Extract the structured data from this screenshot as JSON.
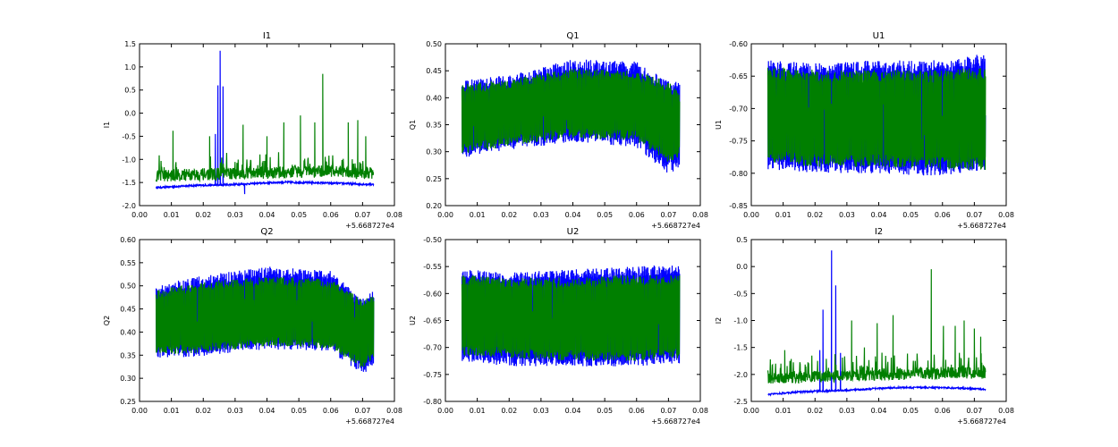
{
  "chart_data": [
    {
      "type": "line",
      "title": "I1",
      "ylabel": "I1",
      "xlabel": "",
      "x_offset_label": "+5.668727e4",
      "xlim": [
        0.0,
        0.08
      ],
      "ylim": [
        -2.0,
        1.5
      ],
      "xticks": [
        "0.00",
        "0.01",
        "0.02",
        "0.03",
        "0.04",
        "0.05",
        "0.06",
        "0.07",
        "0.08"
      ],
      "yticks": [
        "-2.0",
        "-1.5",
        "-1.0",
        "-0.5",
        "0.0",
        "0.5",
        "1.0",
        "1.5"
      ],
      "x_range": [
        0.0052,
        0.0735
      ],
      "series": [
        {
          "color": "#0000ff",
          "style": "baseline",
          "base": [
            [
              0.005,
              -1.62
            ],
            [
              0.015,
              -1.58
            ],
            [
              0.03,
              -1.55
            ],
            [
              0.045,
              -1.5
            ],
            [
              0.06,
              -1.52
            ],
            [
              0.0735,
              -1.55
            ]
          ],
          "noise": 0.04,
          "spikes": [
            [
              0.0238,
              -0.45
            ],
            [
              0.0246,
              0.6
            ],
            [
              0.0253,
              1.35
            ],
            [
              0.0262,
              0.58
            ],
            [
              0.033,
              -1.75
            ]
          ]
        },
        {
          "color": "#007f00",
          "style": "baseline",
          "base": [
            [
              0.005,
              -1.45
            ],
            [
              0.03,
              -1.4
            ],
            [
              0.06,
              -1.35
            ],
            [
              0.0735,
              -1.4
            ]
          ],
          "noise": 0.12,
          "spikes": [
            [
              0.0105,
              -0.38
            ],
            [
              0.022,
              -0.5
            ],
            [
              0.0325,
              -0.25
            ],
            [
              0.04,
              -0.5
            ],
            [
              0.0453,
              -0.2
            ],
            [
              0.0505,
              -0.05
            ],
            [
              0.055,
              -0.2
            ],
            [
              0.0575,
              0.85
            ],
            [
              0.0655,
              -0.2
            ],
            [
              0.0685,
              -0.15
            ],
            [
              0.071,
              -0.5
            ]
          ]
        }
      ]
    },
    {
      "type": "line",
      "title": "Q1",
      "ylabel": "Q1",
      "xlabel": "",
      "x_offset_label": "+5.668727e4",
      "xlim": [
        0.0,
        0.08
      ],
      "ylim": [
        0.2,
        0.5
      ],
      "xticks": [
        "0.00",
        "0.01",
        "0.02",
        "0.03",
        "0.04",
        "0.05",
        "0.06",
        "0.07",
        "0.08"
      ],
      "yticks": [
        "0.20",
        "0.25",
        "0.30",
        "0.35",
        "0.40",
        "0.45",
        "0.50"
      ],
      "x_range": [
        0.0052,
        0.0735
      ],
      "series": [
        {
          "color": "#0000ff",
          "style": "band",
          "top": [
            [
              0.005,
              0.42
            ],
            [
              0.02,
              0.43
            ],
            [
              0.04,
              0.46
            ],
            [
              0.06,
              0.455
            ],
            [
              0.07,
              0.42
            ],
            [
              0.0735,
              0.42
            ]
          ],
          "bottom": [
            [
              0.005,
              0.3
            ],
            [
              0.02,
              0.315
            ],
            [
              0.04,
              0.33
            ],
            [
              0.06,
              0.32
            ],
            [
              0.07,
              0.27
            ],
            [
              0.0735,
              0.28
            ]
          ],
          "noise": 0.012
        },
        {
          "color": "#007f00",
          "style": "band",
          "top": [
            [
              0.005,
              0.415
            ],
            [
              0.02,
              0.425
            ],
            [
              0.04,
              0.445
            ],
            [
              0.06,
              0.44
            ],
            [
              0.07,
              0.42
            ],
            [
              0.0735,
              0.4
            ]
          ],
          "bottom": [
            [
              0.005,
              0.305
            ],
            [
              0.02,
              0.32
            ],
            [
              0.04,
              0.335
            ],
            [
              0.06,
              0.33
            ],
            [
              0.07,
              0.29
            ],
            [
              0.0735,
              0.3
            ]
          ],
          "noise": 0.01
        }
      ]
    },
    {
      "type": "line",
      "title": "U1",
      "ylabel": "U1",
      "xlabel": "",
      "x_offset_label": "+5.668727e4",
      "xlim": [
        0.0,
        0.08
      ],
      "ylim": [
        -0.85,
        -0.6
      ],
      "xticks": [
        "0.00",
        "0.01",
        "0.02",
        "0.03",
        "0.04",
        "0.05",
        "0.06",
        "0.07",
        "0.08"
      ],
      "yticks": [
        "-0.85",
        "-0.80",
        "-0.75",
        "-0.70",
        "-0.65",
        "-0.60"
      ],
      "x_range": [
        0.0052,
        0.0735
      ],
      "series": [
        {
          "color": "#0000ff",
          "style": "band",
          "top": [
            [
              0.005,
              -0.635
            ],
            [
              0.02,
              -0.64
            ],
            [
              0.04,
              -0.635
            ],
            [
              0.06,
              -0.635
            ],
            [
              0.0735,
              -0.625
            ]
          ],
          "bottom": [
            [
              0.005,
              -0.785
            ],
            [
              0.02,
              -0.79
            ],
            [
              0.04,
              -0.79
            ],
            [
              0.06,
              -0.795
            ],
            [
              0.0735,
              -0.785
            ]
          ],
          "noise": 0.01
        },
        {
          "color": "#007f00",
          "style": "band",
          "top": [
            [
              0.005,
              -0.645
            ],
            [
              0.02,
              -0.65
            ],
            [
              0.04,
              -0.65
            ],
            [
              0.06,
              -0.65
            ],
            [
              0.0735,
              -0.645
            ]
          ],
          "bottom": [
            [
              0.005,
              -0.775
            ],
            [
              0.02,
              -0.78
            ],
            [
              0.04,
              -0.78
            ],
            [
              0.06,
              -0.785
            ],
            [
              0.0735,
              -0.785
            ]
          ],
          "noise": 0.01
        }
      ]
    },
    {
      "type": "line",
      "title": "Q2",
      "ylabel": "Q2",
      "xlabel": "",
      "x_offset_label": "+5.668727e4",
      "xlim": [
        0.0,
        0.08
      ],
      "ylim": [
        0.25,
        0.6
      ],
      "xticks": [
        "0.00",
        "0.01",
        "0.02",
        "0.03",
        "0.04",
        "0.05",
        "0.06",
        "0.07",
        "0.08"
      ],
      "yticks": [
        "0.25",
        "0.30",
        "0.35",
        "0.40",
        "0.45",
        "0.50",
        "0.55",
        "0.60"
      ],
      "x_range": [
        0.0052,
        0.0735
      ],
      "series": [
        {
          "color": "#0000ff",
          "style": "band",
          "top": [
            [
              0.005,
              0.49
            ],
            [
              0.02,
              0.51
            ],
            [
              0.04,
              0.53
            ],
            [
              0.06,
              0.52
            ],
            [
              0.07,
              0.46
            ],
            [
              0.0735,
              0.48
            ]
          ],
          "bottom": [
            [
              0.005,
              0.355
            ],
            [
              0.02,
              0.36
            ],
            [
              0.04,
              0.375
            ],
            [
              0.06,
              0.37
            ],
            [
              0.07,
              0.32
            ],
            [
              0.0735,
              0.34
            ]
          ],
          "noise": 0.012
        },
        {
          "color": "#007f00",
          "style": "band",
          "top": [
            [
              0.005,
              0.48
            ],
            [
              0.02,
              0.5
            ],
            [
              0.04,
              0.51
            ],
            [
              0.06,
              0.505
            ],
            [
              0.07,
              0.46
            ],
            [
              0.0735,
              0.47
            ]
          ],
          "bottom": [
            [
              0.005,
              0.36
            ],
            [
              0.02,
              0.365
            ],
            [
              0.04,
              0.38
            ],
            [
              0.06,
              0.375
            ],
            [
              0.07,
              0.33
            ],
            [
              0.0735,
              0.35
            ]
          ],
          "noise": 0.01
        }
      ]
    },
    {
      "type": "line",
      "title": "U2",
      "ylabel": "U2",
      "xlabel": "",
      "x_offset_label": "+5.668727e4",
      "xlim": [
        0.0,
        0.08
      ],
      "ylim": [
        -0.8,
        -0.5
      ],
      "xticks": [
        "0.00",
        "0.01",
        "0.02",
        "0.03",
        "0.04",
        "0.05",
        "0.06",
        "0.07",
        "0.08"
      ],
      "yticks": [
        "-0.80",
        "-0.75",
        "-0.70",
        "-0.65",
        "-0.60",
        "-0.55",
        "-0.50"
      ],
      "x_range": [
        0.0052,
        0.0735
      ],
      "series": [
        {
          "color": "#0000ff",
          "style": "band",
          "top": [
            [
              0.005,
              -0.565
            ],
            [
              0.02,
              -0.57
            ],
            [
              0.04,
              -0.565
            ],
            [
              0.06,
              -0.56
            ],
            [
              0.0735,
              -0.555
            ]
          ],
          "bottom": [
            [
              0.005,
              -0.715
            ],
            [
              0.02,
              -0.725
            ],
            [
              0.04,
              -0.725
            ],
            [
              0.06,
              -0.725
            ],
            [
              0.0735,
              -0.72
            ]
          ],
          "noise": 0.01
        },
        {
          "color": "#007f00",
          "style": "band",
          "top": [
            [
              0.005,
              -0.575
            ],
            [
              0.02,
              -0.58
            ],
            [
              0.04,
              -0.58
            ],
            [
              0.06,
              -0.575
            ],
            [
              0.0735,
              -0.575
            ]
          ],
          "bottom": [
            [
              0.005,
              -0.705
            ],
            [
              0.02,
              -0.71
            ],
            [
              0.04,
              -0.715
            ],
            [
              0.06,
              -0.715
            ],
            [
              0.0735,
              -0.71
            ]
          ],
          "noise": 0.01
        }
      ]
    },
    {
      "type": "line",
      "title": "I2",
      "ylabel": "I2",
      "xlabel": "",
      "x_offset_label": "+5.668727e4",
      "xlim": [
        0.0,
        0.08
      ],
      "ylim": [
        -2.5,
        0.5
      ],
      "xticks": [
        "0.00",
        "0.01",
        "0.02",
        "0.03",
        "0.04",
        "0.05",
        "0.06",
        "0.07",
        "0.08"
      ],
      "yticks": [
        "-2.5",
        "-2.0",
        "-1.5",
        "-1.0",
        "-0.5",
        "0.0",
        "0.5"
      ],
      "x_range": [
        0.0052,
        0.0735
      ],
      "series": [
        {
          "color": "#0000ff",
          "style": "baseline",
          "base": [
            [
              0.005,
              -2.38
            ],
            [
              0.015,
              -2.33
            ],
            [
              0.03,
              -2.3
            ],
            [
              0.045,
              -2.25
            ],
            [
              0.06,
              -2.25
            ],
            [
              0.0735,
              -2.28
            ]
          ],
          "noise": 0.03,
          "spikes": [
            [
              0.0215,
              -1.55
            ],
            [
              0.0225,
              -0.8
            ],
            [
              0.0252,
              0.3
            ],
            [
              0.0265,
              -0.35
            ],
            [
              0.028,
              -1.6
            ]
          ]
        },
        {
          "color": "#007f00",
          "style": "baseline",
          "base": [
            [
              0.005,
              -2.15
            ],
            [
              0.03,
              -2.1
            ],
            [
              0.06,
              -2.05
            ],
            [
              0.0735,
              -2.05
            ]
          ],
          "noise": 0.1,
          "spikes": [
            [
              0.0105,
              -1.55
            ],
            [
              0.019,
              -1.65
            ],
            [
              0.0315,
              -1.0
            ],
            [
              0.0355,
              -1.5
            ],
            [
              0.0395,
              -1.05
            ],
            [
              0.0445,
              -0.9
            ],
            [
              0.0565,
              -0.05
            ],
            [
              0.0603,
              -1.1
            ],
            [
              0.064,
              -1.1
            ],
            [
              0.0668,
              -1.0
            ],
            [
              0.07,
              -1.15
            ],
            [
              0.072,
              -1.3
            ]
          ]
        }
      ]
    }
  ]
}
